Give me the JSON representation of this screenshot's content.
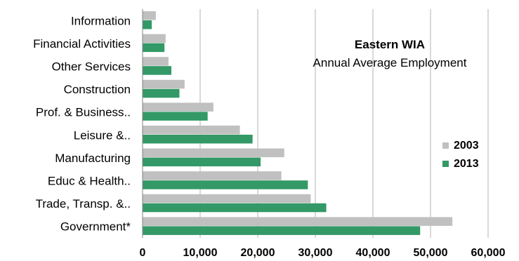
{
  "chart_data": {
    "type": "bar",
    "orientation": "horizontal",
    "title": "Eastern WIA",
    "subtitle": "Annual Average Employment",
    "categories": [
      "Information",
      "Financial Activities",
      "Other Services",
      "Construction",
      "Prof. & Business..",
      "Leisure &..",
      "Manufacturing",
      "Educ & Health..",
      "Trade, Transp. &..",
      "Government*"
    ],
    "series": [
      {
        "name": "2003",
        "color": "#c0c0c0",
        "values": [
          2300,
          4000,
          4500,
          7300,
          12300,
          16900,
          24600,
          24100,
          29200,
          53800
        ]
      },
      {
        "name": "2013",
        "color": "#339966",
        "values": [
          1600,
          3800,
          5000,
          6400,
          11300,
          19100,
          20500,
          28700,
          31900,
          48200
        ]
      }
    ],
    "xlim": [
      0,
      60000
    ],
    "xticks": [
      0,
      10000,
      20000,
      30000,
      40000,
      50000,
      60000
    ],
    "xtick_labels": [
      "0",
      "10,000",
      "20,000",
      "30,000",
      "40,000",
      "50,000",
      "60,000"
    ],
    "xlabel": "",
    "ylabel": "",
    "grid": "vertical",
    "legend_position": "right"
  }
}
